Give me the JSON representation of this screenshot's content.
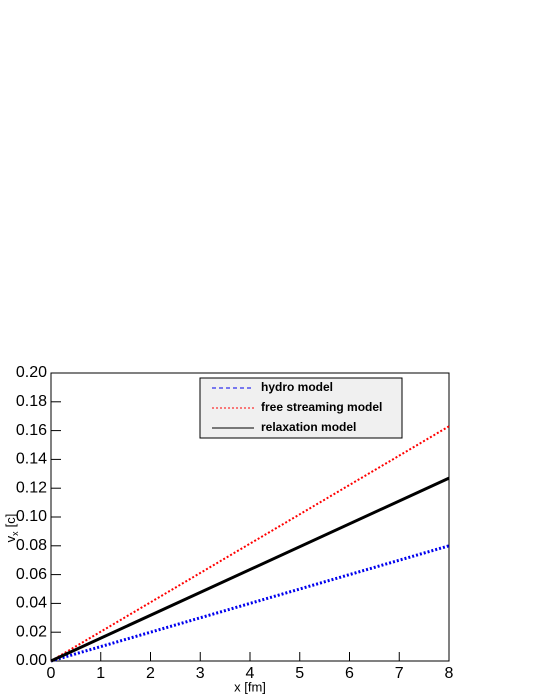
{
  "chart_data": {
    "type": "line",
    "xlabel": "x [fm]",
    "ylabel": {
      "base": "v",
      "sub": "x",
      "unit": "[c]"
    },
    "x": [
      0,
      8
    ],
    "series": [
      {
        "name": "hydro model",
        "color": "#0000ee",
        "style": "dotted",
        "legend_style": "dashed",
        "values": [
          0,
          0.08
        ]
      },
      {
        "name": "free streaming model",
        "color": "#ff0000",
        "style": "dotted",
        "legend_style": "dotted",
        "values": [
          0,
          0.163
        ]
      },
      {
        "name": "relaxation model",
        "color": "#000000",
        "style": "solid",
        "legend_style": "solid",
        "values": [
          0,
          0.127
        ]
      }
    ],
    "xlim": [
      0,
      8
    ],
    "xticks": [
      0,
      1,
      2,
      3,
      4,
      5,
      6,
      7,
      8
    ],
    "ylim": [
      0,
      0.2
    ],
    "yticks": [
      {
        "value": 0,
        "label": "0.00"
      },
      {
        "value": 0.02,
        "label": "0.02"
      },
      {
        "value": 0.04,
        "label": "0.04"
      },
      {
        "value": 0.06,
        "label": "0.06"
      },
      {
        "value": 0.08,
        "label": "0.08"
      },
      {
        "value": 0.1,
        "label": "0.10"
      },
      {
        "value": 0.12,
        "label": "0.12"
      },
      {
        "value": 0.14,
        "label": "0.14"
      },
      {
        "value": 0.16,
        "label": "0.16"
      },
      {
        "value": 0.18,
        "label": "0.18"
      },
      {
        "value": 0.2,
        "label": "0.20"
      }
    ],
    "grid": false,
    "legend_position": "top"
  }
}
